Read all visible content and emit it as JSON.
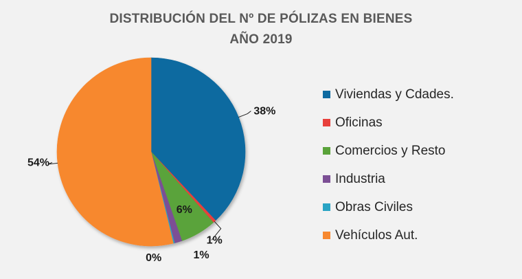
{
  "chart_data": {
    "type": "pie",
    "title": "DISTRIBUCIÓN DEL Nº DE PÓLIZAS EN BIENES",
    "subtitle": "AÑO 2019",
    "legend_position": "right",
    "slices": [
      {
        "label": "Viviendas y Cdades.",
        "value": 38,
        "display": "38%",
        "color": "#0e6aa0"
      },
      {
        "label": "Oficinas",
        "value": 0.5,
        "display": "1%",
        "color": "#e8403c"
      },
      {
        "label": "Comercios y Resto",
        "value": 6.2,
        "display": "6%",
        "color": "#5aa33a"
      },
      {
        "label": "Industria",
        "value": 1.3,
        "display": "1%",
        "color": "#7c4f95"
      },
      {
        "label": "Obras Civiles",
        "value": 0.2,
        "display": "0%",
        "color": "#2aa4c4"
      },
      {
        "label": "Vehículos Aut.",
        "value": 53.8,
        "display": "54%",
        "color": "#f7882f"
      }
    ]
  }
}
